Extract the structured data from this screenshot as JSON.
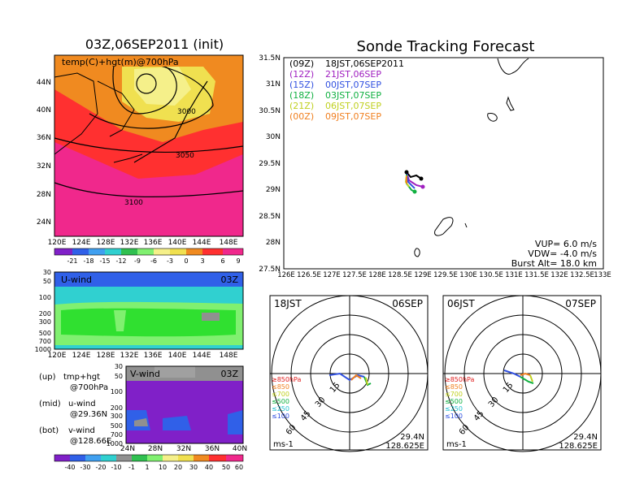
{
  "map_panel": {
    "title": "03Z,06SEP2011 (init)",
    "field_label": "temp(C)+hgt(m)@700hPa",
    "lat_ticks": [
      "44N",
      "40N",
      "36N",
      "32N",
      "28N",
      "24N"
    ],
    "lon_ticks": [
      "120E",
      "124E",
      "128E",
      "132E",
      "136E",
      "140E",
      "144E",
      "148E"
    ],
    "contour_labels": [
      "3000",
      "3050",
      "3100"
    ],
    "colorbar_ticks": [
      "-21",
      "-18",
      "-15",
      "-12",
      "-9",
      "-6",
      "-3",
      "0",
      "3",
      "6",
      "9"
    ]
  },
  "u_panel": {
    "label": "U-wind",
    "time": "03Z",
    "p_ticks": [
      "30",
      "50",
      "100",
      "200",
      "300",
      "500",
      "700",
      "1000"
    ],
    "lon_ticks": [
      "120E",
      "124E",
      "128E",
      "132E",
      "136E",
      "140E",
      "144E",
      "148E"
    ]
  },
  "v_panel": {
    "label": "V-wind",
    "time": "03Z",
    "p_ticks": [
      "30",
      "50",
      "100",
      "200",
      "300",
      "500",
      "700",
      "1000"
    ],
    "lat_ticks": [
      "24N",
      "28N",
      "32N",
      "36N",
      "40N"
    ]
  },
  "notes": [
    {
      "key": "(up)",
      "text": "tmp+hgt",
      "sub": "@700hPa"
    },
    {
      "key": "(mid)",
      "text": "u-wind",
      "sub": "@29.36N"
    },
    {
      "key": "(bot)",
      "text": "v-wind",
      "sub": "@128.66E"
    }
  ],
  "wind_colorbar_ticks": [
    "-40",
    "-30",
    "-20",
    "-10",
    "-1",
    "1",
    "10",
    "20",
    "30",
    "40",
    "50",
    "60"
  ],
  "track_panel": {
    "title": "Sonde Tracking Forecast",
    "lat_ticks": [
      "31.5N",
      "31N",
      "30.5N",
      "30N",
      "29.5N",
      "29N",
      "28.5N",
      "28N",
      "27.5N"
    ],
    "lon_ticks": [
      "126E",
      "126.5E",
      "127E",
      "127.5E",
      "128E",
      "128.5E",
      "129E",
      "129.5E",
      "130E",
      "130.5E",
      "131E",
      "131.5E",
      "132E",
      "132.5E",
      "133E"
    ],
    "legend": [
      {
        "code": "(09Z)",
        "time": "18JST,06SEP2011",
        "color": "#000000"
      },
      {
        "code": "(12Z)",
        "time": "21JST,06SEP",
        "color": "#a020c0"
      },
      {
        "code": "(15Z)",
        "time": "00JST,07SEP",
        "color": "#3050e0"
      },
      {
        "code": "(18Z)",
        "time": "03JST,07SEP",
        "color": "#10b040"
      },
      {
        "code": "(21Z)",
        "time": "06JST,07SEP",
        "color": "#c0d020"
      },
      {
        "code": "(00Z)",
        "time": "09JST,07SEP",
        "color": "#f08020"
      }
    ],
    "params": [
      "VUP=  6.0  m/s",
      "VDW= -4.0  m/s",
      "Burst Alt=  18.0  km"
    ]
  },
  "hodograph_left": {
    "time_label": "18JST",
    "date_label": "06SEP",
    "ring_labels": [
      "15",
      "30",
      "45",
      "60"
    ],
    "levels": [
      {
        "text": "≥850hPa",
        "color": "#e02020"
      },
      {
        "text": "≤850",
        "color": "#f08020"
      },
      {
        "text": "≤700",
        "color": "#c0d020"
      },
      {
        "text": "≤500",
        "color": "#10b040"
      },
      {
        "text": "≤250",
        "color": "#20c0d0"
      },
      {
        "text": "≤100",
        "color": "#3050e0"
      }
    ],
    "units": "ms-1",
    "lat": "29.4N",
    "lon": "128.625E"
  },
  "hodograph_right": {
    "time_label": "06JST",
    "date_label": "07SEP",
    "ring_labels": [
      "15",
      "30",
      "45",
      "60"
    ],
    "levels": [
      {
        "text": "≥850hPa",
        "color": "#e02020"
      },
      {
        "text": "≤850",
        "color": "#f08020"
      },
      {
        "text": "≤700",
        "color": "#c0d020"
      },
      {
        "text": "≤500",
        "color": "#10b040"
      },
      {
        "text": "≤250",
        "color": "#20c0d0"
      },
      {
        "text": "≤100",
        "color": "#3050e0"
      }
    ],
    "units": "ms-1",
    "lat": "29.4N",
    "lon": "128.625E"
  },
  "colors": {
    "warm": "#ff3030",
    "hot": "#f0288c",
    "orange": "#f08a20",
    "yellow": "#f0e050",
    "green": "#30e030",
    "lightgreen": "#80f070",
    "blue": "#3060e8",
    "purple": "#8020c8",
    "gray": "#909090"
  }
}
